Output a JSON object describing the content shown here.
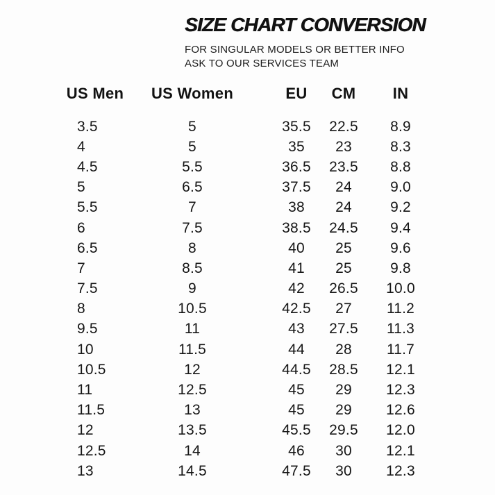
{
  "page": {
    "background_color": "#fdfdfd",
    "text_color": "#161616"
  },
  "header": {
    "title": "SIZE CHART CONVERSION",
    "subtitle_line1": "FOR SINGULAR MODELS OR BETTER INFO",
    "subtitle_line2": "ASK TO OUR SERVICES TEAM"
  },
  "chart_data": {
    "type": "table",
    "title": "SIZE CHART CONVERSION",
    "subtitle": "FOR SINGULAR MODELS OR BETTER INFO ASK TO OUR SERVICES TEAM",
    "columns": [
      "US Men",
      "US Women",
      "EU",
      "CM",
      "IN"
    ],
    "rows": [
      [
        "3.5",
        "5",
        "35.5",
        "22.5",
        "8.9"
      ],
      [
        "4",
        "5",
        "35",
        "23",
        "8.3"
      ],
      [
        "4.5",
        "5.5",
        "36.5",
        "23.5",
        "8.8"
      ],
      [
        "5",
        "6.5",
        "37.5",
        "24",
        "9.0"
      ],
      [
        "5.5",
        "7",
        "38",
        "24",
        "9.2"
      ],
      [
        "6",
        "7.5",
        "38.5",
        "24.5",
        "9.4"
      ],
      [
        "6.5",
        "8",
        "40",
        "25",
        "9.6"
      ],
      [
        "7",
        "8.5",
        "41",
        "25",
        "9.8"
      ],
      [
        "7.5",
        "9",
        "42",
        "26.5",
        "10.0"
      ],
      [
        "8",
        "10.5",
        "42.5",
        "27",
        "11.2"
      ],
      [
        "9.5",
        "11",
        "43",
        "27.5",
        "11.3"
      ],
      [
        "10",
        "11.5",
        "44",
        "28",
        "11.7"
      ],
      [
        "10.5",
        "12",
        "44.5",
        "28.5",
        "12.1"
      ],
      [
        "11",
        "12.5",
        "45",
        "29",
        "12.3"
      ],
      [
        "11.5",
        "13",
        "45",
        "29",
        "12.6"
      ],
      [
        "12",
        "13.5",
        "45.5",
        "29.5",
        "12.0"
      ],
      [
        "12.5",
        "14",
        "46",
        "30",
        "12.1"
      ],
      [
        "13",
        "14.5",
        "47.5",
        "30",
        "12.3"
      ]
    ]
  }
}
